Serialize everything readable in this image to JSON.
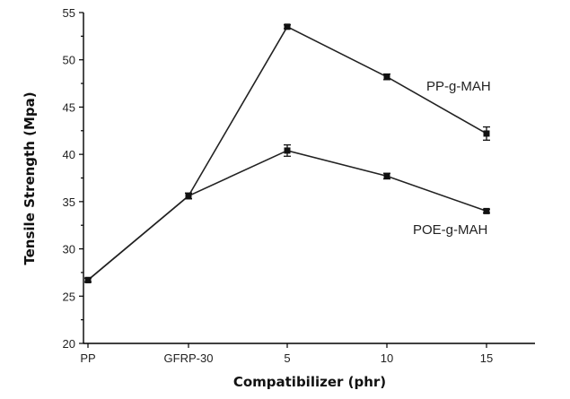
{
  "chart_data": {
    "type": "line",
    "title": "",
    "xlabel": "Compatibilizer (phr)",
    "ylabel": "Tensile Strength (Mpa)",
    "categories": [
      "PP",
      "GFRP-30",
      "5",
      "10",
      "15"
    ],
    "ylim": [
      20,
      55
    ],
    "yticks": [
      "20",
      "25",
      "30",
      "35",
      "40",
      "45",
      "50",
      "55"
    ],
    "grid": false,
    "series": [
      {
        "name": "PP-g-MAH",
        "values": [
          26.7,
          35.6,
          53.5,
          48.2,
          42.2
        ],
        "errors": [
          0.2,
          0.3,
          0.2,
          0.3,
          0.7
        ]
      },
      {
        "name": "POE-g-MAH",
        "values": [
          26.7,
          35.6,
          40.4,
          37.7,
          34.0
        ],
        "errors": [
          0.2,
          0.3,
          0.6,
          0.3,
          0.2
        ]
      }
    ]
  }
}
